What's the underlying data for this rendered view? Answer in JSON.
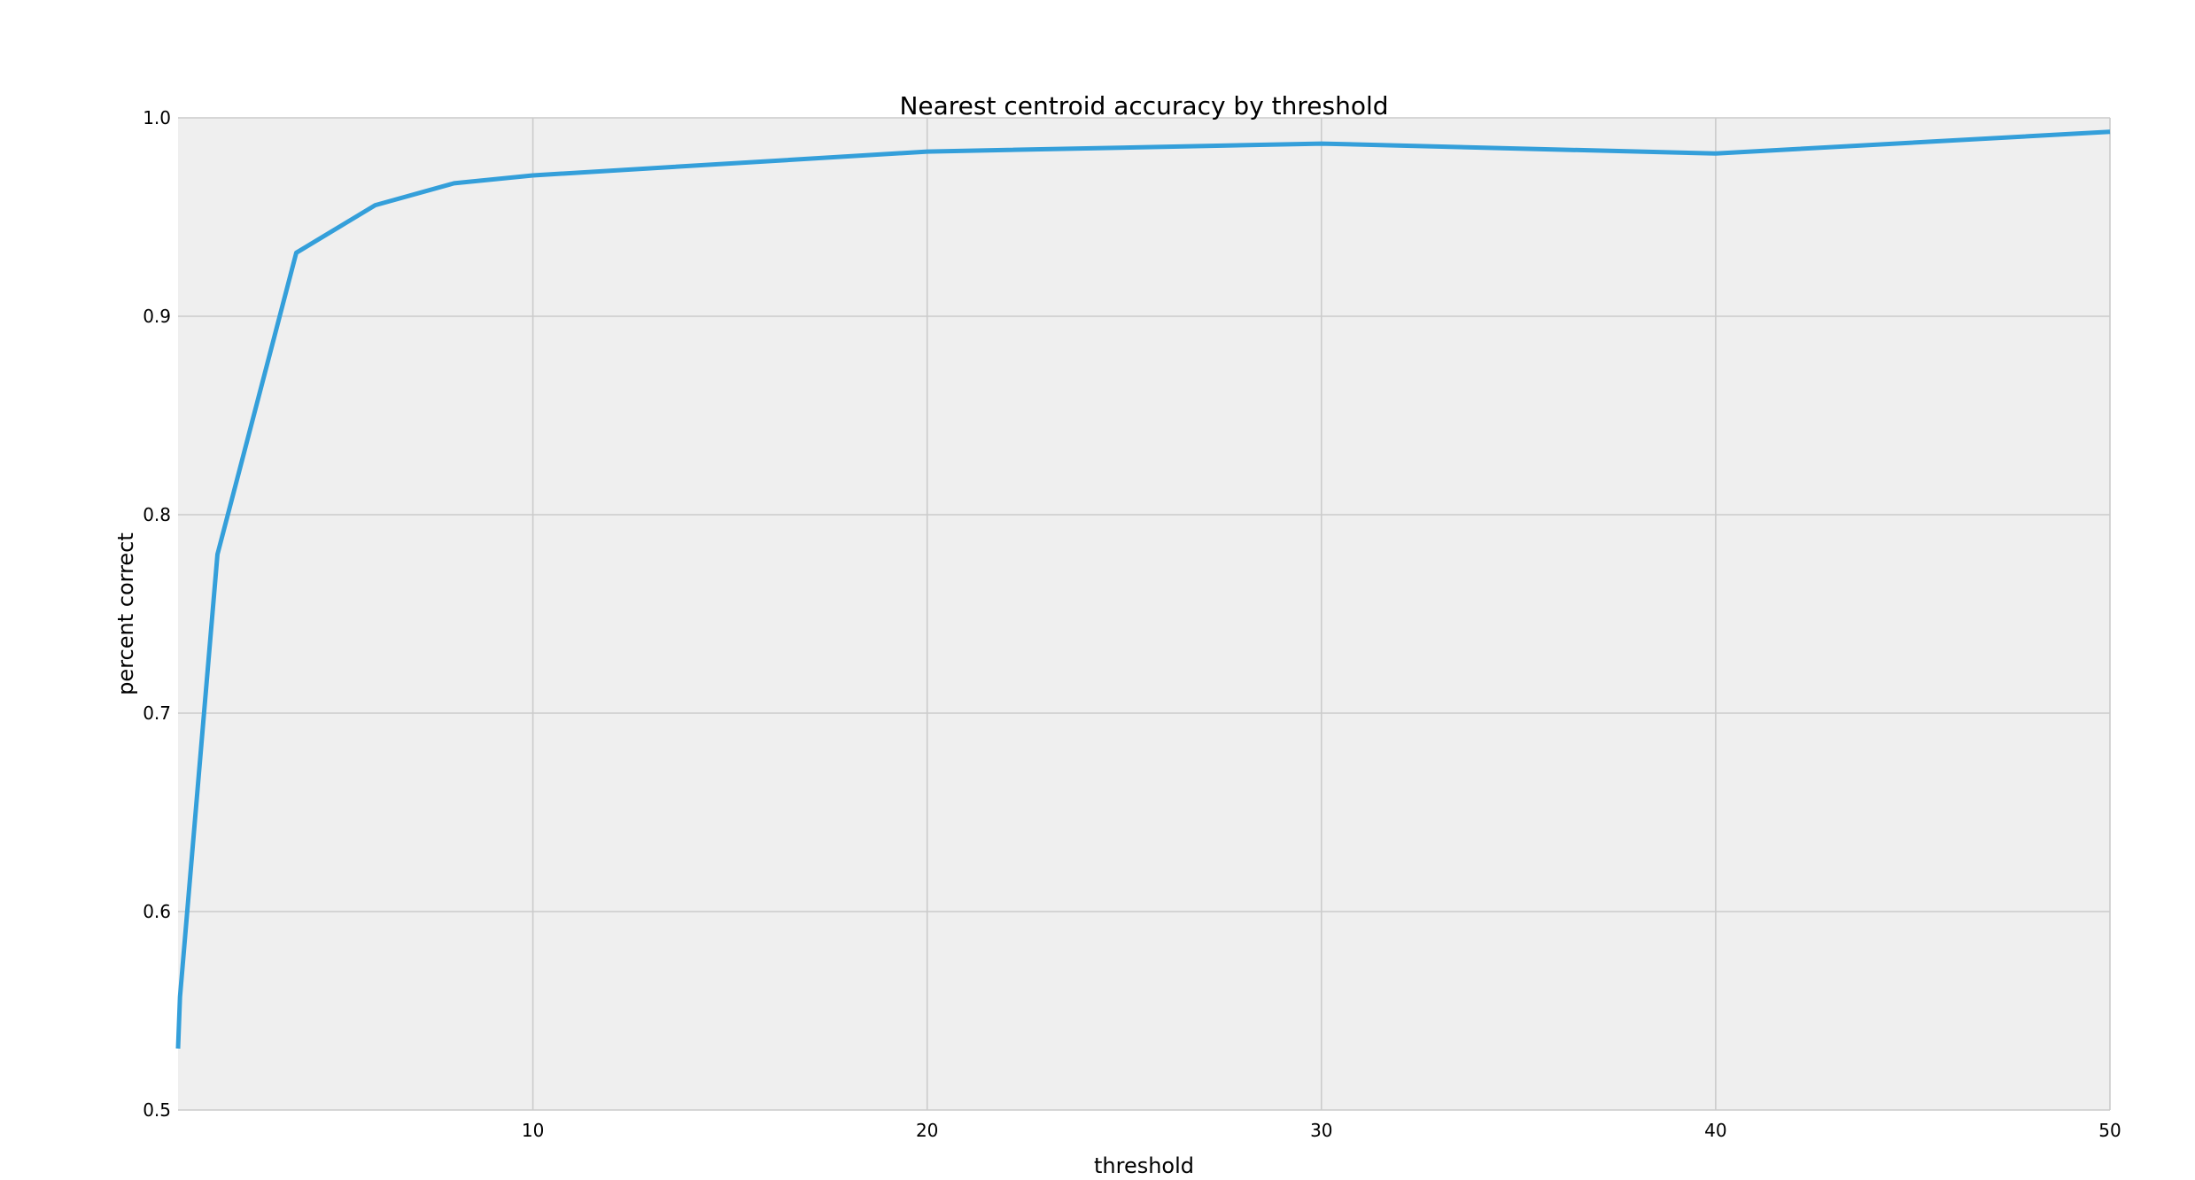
{
  "chart_data": {
    "type": "line",
    "title": "Nearest centroid accuracy by threshold",
    "xlabel": "threshold",
    "ylabel": "percent correct",
    "xlim": [
      1,
      50
    ],
    "ylim": [
      0.5,
      1.0
    ],
    "x_ticks": [
      10,
      20,
      30,
      40,
      50
    ],
    "y_ticks": [
      0.5,
      0.6,
      0.7,
      0.8,
      0.9,
      1.0
    ],
    "x_tick_labels": [
      "10",
      "20",
      "30",
      "40",
      "50"
    ],
    "y_tick_labels": [
      "0.5",
      "0.6",
      "0.7",
      "0.8",
      "0.9",
      "1.0"
    ],
    "grid": true,
    "background_color": "#efefef",
    "series": [
      {
        "color": "#349fda",
        "x": [
          1,
          1.05,
          2,
          4,
          6,
          8,
          10,
          20,
          30,
          40,
          50
        ],
        "y": [
          0.531,
          0.557,
          0.78,
          0.932,
          0.956,
          0.967,
          0.971,
          0.983,
          0.987,
          0.982,
          0.993
        ]
      }
    ]
  }
}
